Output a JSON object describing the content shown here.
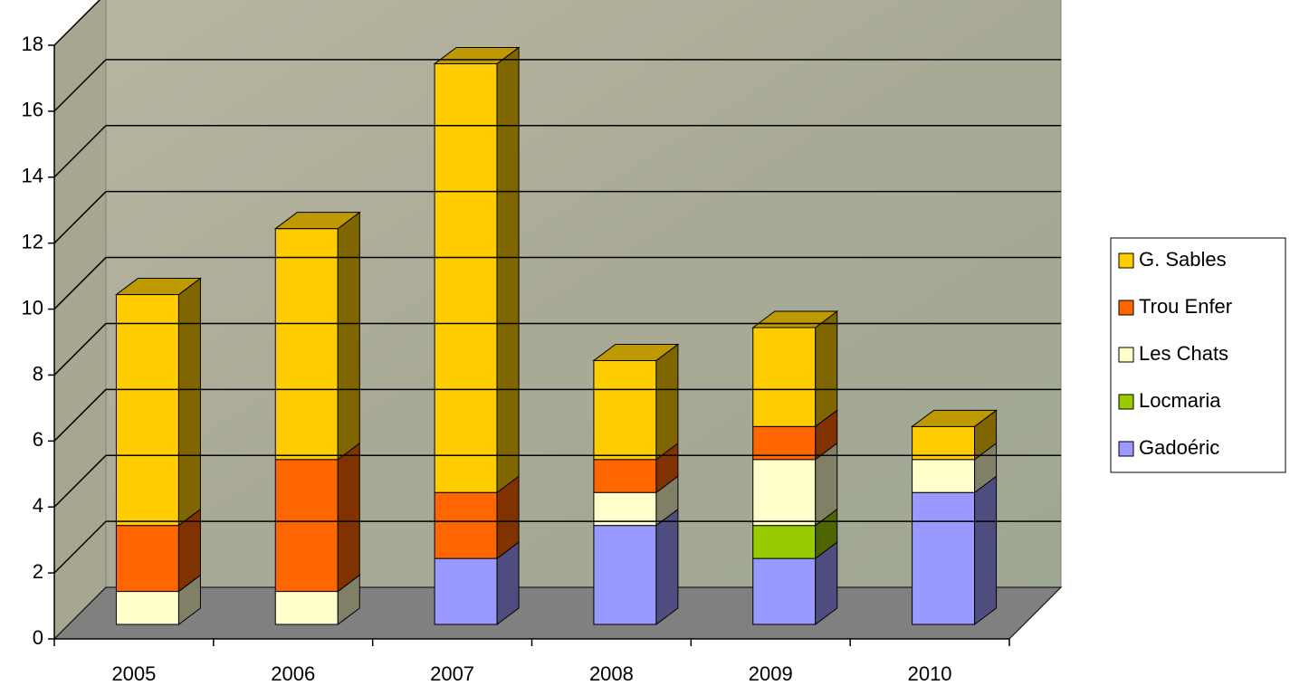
{
  "chart_data": {
    "type": "bar3d_stacked",
    "categories": [
      "2005",
      "2006",
      "2007",
      "2008",
      "2009",
      "2010"
    ],
    "series": [
      {
        "name": "Gadoéric",
        "color": "#9999ff",
        "values": [
          0,
          0,
          2,
          3,
          2,
          4
        ]
      },
      {
        "name": "Locmaria",
        "color": "#99cc00",
        "values": [
          0,
          0,
          0,
          0,
          1,
          0
        ]
      },
      {
        "name": "Les Chats",
        "color": "#ffffcc",
        "values": [
          1,
          1,
          0,
          1,
          2,
          1
        ]
      },
      {
        "name": "Trou Enfer",
        "color": "#ff6600",
        "values": [
          2,
          4,
          2,
          1,
          1,
          0
        ]
      },
      {
        "name": "G. Sables",
        "color": "#ffcc00",
        "values": [
          7,
          7,
          13,
          3,
          3,
          1
        ]
      }
    ],
    "ylim": [
      0,
      18
    ],
    "yticks": [
      0,
      2,
      4,
      6,
      8,
      10,
      12,
      14,
      16,
      18
    ],
    "grid": true
  }
}
